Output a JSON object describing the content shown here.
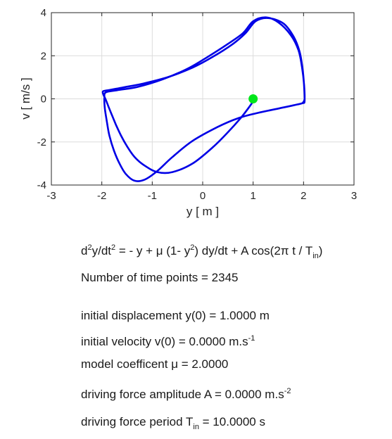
{
  "chart_data": {
    "type": "line",
    "xlabel": "y  [ m ]",
    "ylabel": "v  [ m/s ]",
    "xlim": [
      -3,
      3
    ],
    "ylim": [
      -4,
      4
    ],
    "xticks": [
      "-3",
      "-2",
      "-1",
      "0",
      "1",
      "2",
      "3"
    ],
    "yticks": [
      "-4",
      "-2",
      "0",
      "2",
      "4"
    ],
    "grid": true,
    "series": [
      {
        "color": "#0000e6",
        "x": [
          1.0,
          0.98,
          0.9,
          0.75,
          0.5,
          0.2,
          -0.2,
          -0.6,
          -0.9,
          -1.15,
          -1.35,
          -1.5,
          -1.62,
          -1.72,
          -1.8,
          -1.87,
          -1.92,
          -1.96,
          -1.98,
          -1.97,
          -1.88,
          -1.6,
          -1.2,
          -0.7,
          -0.2,
          0.2,
          0.6,
          0.85,
          1.05,
          1.3,
          1.6,
          1.8,
          1.92,
          1.98,
          2.01,
          2.02,
          1.98,
          1.8,
          1.5,
          1.1,
          0.7,
          0.3,
          -0.2,
          -0.6,
          -0.9,
          -1.15,
          -1.35,
          -1.52,
          -1.65,
          -1.76,
          -1.85,
          -1.9,
          -1.94,
          -1.95,
          -1.92,
          -1.7,
          -1.3,
          -0.8,
          -0.3,
          0.1,
          0.5,
          0.8,
          1.0,
          1.25,
          1.5,
          1.75,
          1.9,
          1.97,
          2.01,
          2.02,
          1.98
        ],
        "y": [
          0.0,
          -0.18,
          -0.45,
          -0.9,
          -1.55,
          -2.25,
          -3.0,
          -3.4,
          -3.4,
          -3.1,
          -2.7,
          -2.2,
          -1.7,
          -1.2,
          -0.75,
          -0.35,
          -0.05,
          0.15,
          0.28,
          0.36,
          0.4,
          0.52,
          0.7,
          1.0,
          1.45,
          1.95,
          2.55,
          3.05,
          3.6,
          3.75,
          3.5,
          2.9,
          2.2,
          1.4,
          0.6,
          -0.1,
          -0.2,
          -0.3,
          -0.45,
          -0.65,
          -0.9,
          -1.3,
          -1.95,
          -2.7,
          -3.35,
          -3.75,
          -3.8,
          -3.5,
          -3.0,
          -2.4,
          -1.7,
          -1.05,
          -0.45,
          0.05,
          0.3,
          0.4,
          0.55,
          0.9,
          1.4,
          1.95,
          2.55,
          3.05,
          3.6,
          3.78,
          3.55,
          2.95,
          2.25,
          1.45,
          0.65,
          0.0,
          -0.2
        ]
      }
    ],
    "marker": {
      "x": 1.0,
      "y": 0.0,
      "color": "#00e61a"
    }
  },
  "info": {
    "equation": {
      "d": "d",
      "sup1": "2",
      "mid1": "y/dt",
      "sup2": "2",
      "mid2": "  =  - y + μ (1- y",
      "sup3": "2",
      "mid3": ") dy/dt + A cos(2π t / T",
      "sub1": "in",
      "end": ")"
    },
    "time_points": "Number of time points  =  2345",
    "init_disp": "initial displacement y(0) =  1.0000  m",
    "init_vel": {
      "text": "initial velocity  v(0)  =  0.0000  m.s",
      "sup": "-1"
    },
    "model_coef": "model coefficent  μ  =  2.0000",
    "drive_amp": {
      "text": "driving force amplitude  A  =  0.0000  m.s",
      "sup": "-2"
    },
    "drive_period": {
      "text": "driving force period  T",
      "sub": "in",
      "end": "  =  10.0000  s"
    }
  }
}
